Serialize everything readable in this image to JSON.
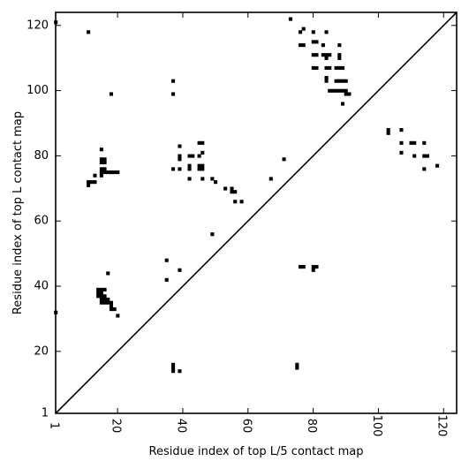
{
  "chart_data": {
    "type": "scatter",
    "xlabel": "Residue index of top L/5 contact map",
    "ylabel": "Residue index of top L contact map",
    "xlim": [
      1,
      124
    ],
    "ylim": [
      1,
      124
    ],
    "x_ticks": [
      1,
      20,
      40,
      60,
      80,
      100,
      120
    ],
    "y_ticks": [
      1,
      20,
      40,
      60,
      80,
      100,
      120
    ],
    "x_tick_rotation_deg": -90,
    "grid": false,
    "diagonal_line": true,
    "mark_color": "#000000",
    "upper_contacts": [
      [
        73,
        122
      ],
      [
        11,
        118
      ],
      [
        76,
        118
      ],
      [
        77,
        119
      ],
      [
        80,
        118
      ],
      [
        84,
        118
      ],
      [
        80,
        115
      ],
      [
        81,
        115
      ],
      [
        83,
        114
      ],
      [
        76,
        114
      ],
      [
        77,
        114
      ],
      [
        88,
        114
      ],
      [
        80,
        111
      ],
      [
        81,
        111
      ],
      [
        83,
        111
      ],
      [
        84,
        111
      ],
      [
        85,
        111
      ],
      [
        88,
        111
      ],
      [
        88,
        110
      ],
      [
        84,
        110
      ],
      [
        80,
        107
      ],
      [
        81,
        107
      ],
      [
        84,
        107
      ],
      [
        85,
        107
      ],
      [
        87,
        107
      ],
      [
        88,
        107
      ],
      [
        89,
        107
      ],
      [
        84,
        104
      ],
      [
        84,
        103
      ],
      [
        87,
        103
      ],
      [
        88,
        103
      ],
      [
        89,
        103
      ],
      [
        90,
        103
      ],
      [
        37,
        103
      ],
      [
        85,
        100
      ],
      [
        86,
        100
      ],
      [
        87,
        100
      ],
      [
        88,
        100
      ],
      [
        89,
        100
      ],
      [
        90,
        100
      ],
      [
        90,
        99
      ],
      [
        91,
        99
      ],
      [
        18,
        99
      ],
      [
        37,
        99
      ],
      [
        89,
        96
      ],
      [
        103,
        88
      ],
      [
        103,
        87
      ],
      [
        107,
        88
      ],
      [
        107,
        84
      ],
      [
        110,
        84
      ],
      [
        111,
        84
      ],
      [
        114,
        84
      ],
      [
        15,
        82
      ],
      [
        107,
        81
      ],
      [
        111,
        80
      ],
      [
        114,
        80
      ],
      [
        115,
        80
      ],
      [
        39,
        83
      ],
      [
        39,
        80
      ],
      [
        39,
        79
      ],
      [
        42,
        80
      ],
      [
        43,
        80
      ],
      [
        45,
        84
      ],
      [
        46,
        84
      ],
      [
        45,
        80
      ],
      [
        46,
        81
      ],
      [
        15,
        79
      ],
      [
        16,
        79
      ],
      [
        15,
        78
      ],
      [
        16,
        78
      ],
      [
        15,
        76
      ],
      [
        16,
        76
      ],
      [
        17,
        75
      ],
      [
        18,
        75
      ],
      [
        19,
        75
      ],
      [
        20,
        75
      ],
      [
        15,
        75
      ],
      [
        16,
        75
      ],
      [
        15,
        74
      ],
      [
        37,
        76
      ],
      [
        39,
        76
      ],
      [
        42,
        77
      ],
      [
        42,
        76
      ],
      [
        45,
        77
      ],
      [
        46,
        77
      ],
      [
        45,
        76
      ],
      [
        46,
        76
      ],
      [
        13,
        74
      ],
      [
        12,
        72
      ],
      [
        13,
        72
      ],
      [
        11,
        71
      ],
      [
        11,
        72
      ],
      [
        42,
        73
      ],
      [
        46,
        73
      ],
      [
        49,
        73
      ],
      [
        50,
        72
      ],
      [
        53,
        70
      ],
      [
        55,
        70
      ],
      [
        55,
        69
      ],
      [
        56,
        69
      ],
      [
        56,
        66
      ],
      [
        58,
        66
      ],
      [
        67,
        73
      ],
      [
        71,
        79
      ],
      [
        114,
        76
      ],
      [
        118,
        77
      ]
    ],
    "lower_contacts": [
      [
        1,
        121
      ],
      [
        1,
        32
      ],
      [
        35,
        48
      ],
      [
        35,
        42
      ],
      [
        39,
        45
      ],
      [
        49,
        56
      ],
      [
        17,
        44
      ],
      [
        14,
        39
      ],
      [
        15,
        39
      ],
      [
        16,
        39
      ],
      [
        14,
        38
      ],
      [
        15,
        38
      ],
      [
        14,
        37
      ],
      [
        15,
        37
      ],
      [
        16,
        37
      ],
      [
        15,
        36
      ],
      [
        16,
        36
      ],
      [
        17,
        36
      ],
      [
        15,
        35
      ],
      [
        16,
        35
      ],
      [
        17,
        35
      ],
      [
        18,
        35
      ],
      [
        18,
        34
      ],
      [
        18,
        33
      ],
      [
        19,
        33
      ],
      [
        20,
        31
      ],
      [
        76,
        46
      ],
      [
        77,
        46
      ],
      [
        80,
        46
      ],
      [
        81,
        46
      ],
      [
        80,
        45
      ],
      [
        37,
        16
      ],
      [
        37,
        15
      ],
      [
        37,
        14
      ],
      [
        39,
        14
      ],
      [
        75,
        16
      ],
      [
        75,
        15
      ]
    ]
  }
}
